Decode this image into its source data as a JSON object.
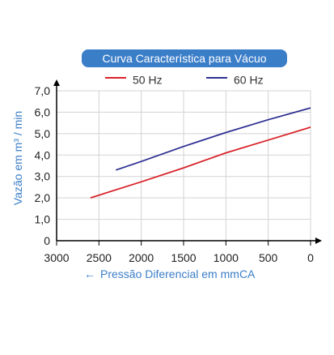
{
  "chart_data": {
    "type": "line",
    "title": "Curva Característica para Vácuo",
    "xlabel": "Pressão Diferencial em mmCA",
    "xlabel_arrow": "←",
    "ylabel": "Vazão em m³ / min",
    "xlim": [
      3000,
      0
    ],
    "ylim": [
      0,
      7
    ],
    "x_ticks": [
      "3000",
      "2500",
      "2000",
      "1500",
      "1000",
      "500",
      "0"
    ],
    "x_tick_values": [
      3000,
      2500,
      2000,
      1500,
      1000,
      500,
      0
    ],
    "y_ticks": [
      "0",
      "1,0",
      "2,0",
      "3,0",
      "4,0",
      "5,0",
      "6,0",
      "7,0"
    ],
    "y_tick_values": [
      0,
      1,
      2,
      3,
      4,
      5,
      6,
      7
    ],
    "grid": true,
    "legend_position": "top-center",
    "series": [
      {
        "name": "50 Hz",
        "color": "#d8232a",
        "x": [
          2600,
          2000,
          1500,
          1000,
          500,
          0
        ],
        "y": [
          2.0,
          2.75,
          3.4,
          4.1,
          4.7,
          5.3
        ]
      },
      {
        "name": "60 Hz",
        "color": "#2e3192",
        "x": [
          2300,
          2000,
          1500,
          1000,
          500,
          0
        ],
        "y": [
          3.3,
          3.7,
          4.4,
          5.05,
          5.65,
          6.2
        ]
      }
    ]
  },
  "colors": {
    "accent": "#3b7ec8",
    "axis": "#000000",
    "grid": "#d3d3d3"
  }
}
